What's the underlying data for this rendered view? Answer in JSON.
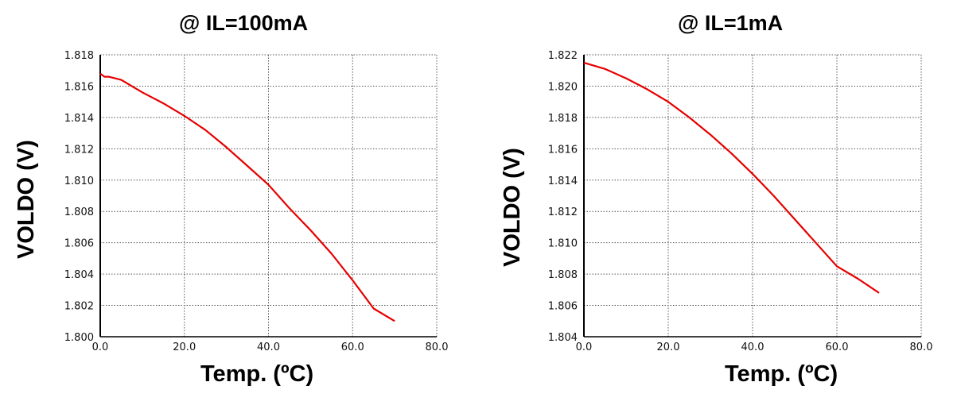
{
  "chart_data": [
    {
      "type": "line",
      "title": "@ IL=100mA",
      "xlabel": "Temp. (ºC)",
      "ylabel": "VOLDO (V)",
      "xlim": [
        0,
        80
      ],
      "ylim": [
        1.8,
        1.818
      ],
      "xticks": [
        "0.0",
        "20.0",
        "40.0",
        "60.0",
        "80.0"
      ],
      "yticks": [
        "1.800",
        "1.802",
        "1.804",
        "1.806",
        "1.808",
        "1.810",
        "1.812",
        "1.814",
        "1.816",
        "1.818"
      ],
      "grid": true,
      "series": [
        {
          "color": "#e60000",
          "x": [
            0,
            1,
            2,
            5,
            10,
            15,
            20,
            25,
            30,
            35,
            40,
            45,
            50,
            55,
            60,
            65,
            70
          ],
          "y": [
            1.8168,
            1.8166,
            1.8166,
            1.8164,
            1.8156,
            1.8149,
            1.8141,
            1.8132,
            1.8121,
            1.8109,
            1.8097,
            1.8082,
            1.8068,
            1.8053,
            1.8036,
            1.8018,
            1.801
          ]
        }
      ]
    },
    {
      "type": "line",
      "title": "@ IL=1mA",
      "xlabel": "Temp. (ºC)",
      "ylabel": "VOLDO (V)",
      "xlim": [
        0,
        80
      ],
      "ylim": [
        1.804,
        1.822
      ],
      "xticks": [
        "0.0",
        "20.0",
        "40.0",
        "60.0",
        "80.0"
      ],
      "yticks": [
        "1.804",
        "1.806",
        "1.808",
        "1.810",
        "1.812",
        "1.814",
        "1.816",
        "1.818",
        "1.820",
        "1.822"
      ],
      "grid": true,
      "series": [
        {
          "color": "#e60000",
          "x": [
            0,
            5,
            10,
            15,
            20,
            25,
            30,
            35,
            40,
            45,
            50,
            55,
            60,
            65,
            70
          ],
          "y": [
            1.8215,
            1.8211,
            1.8205,
            1.8198,
            1.819,
            1.818,
            1.8169,
            1.8157,
            1.8144,
            1.813,
            1.8115,
            1.81,
            1.8085,
            1.8077,
            1.8068
          ]
        }
      ]
    }
  ]
}
